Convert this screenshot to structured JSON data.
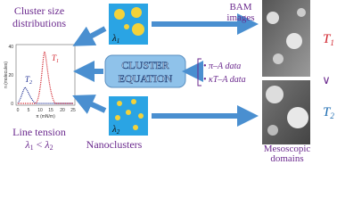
{
  "left": {
    "title": [
      "Cluster size",
      "distributions"
    ],
    "plot": {
      "y_label": "n (molecules)",
      "x_label": "π (mN/m)",
      "x_ticks": [
        "0",
        "5",
        "10",
        "15",
        "20",
        "25"
      ],
      "y_ticks": [
        "0",
        "20",
        "40"
      ],
      "curve_labels": [
        {
          "symbol": "T",
          "sub": "1"
        },
        {
          "symbol": "T",
          "sub": "2"
        }
      ]
    },
    "line_tension": {
      "text": "Line tension",
      "relation": {
        "a": "λ",
        "a_sub": "1",
        "op": " < ",
        "b": "λ",
        "b_sub": "2"
      }
    }
  },
  "center": {
    "top_square": {
      "symbol": "λ",
      "sub": "1"
    },
    "bottom_square": {
      "symbol": "λ",
      "sub": "2"
    },
    "equation": [
      "CLUSTER",
      "EQUATION"
    ],
    "caption": "Nanoclusters"
  },
  "inputs": [
    "π–A data",
    "κT–A data"
  ],
  "right": {
    "title": [
      "BAM",
      "images"
    ],
    "t1": {
      "symbol": "T",
      "sub": "1"
    },
    "relation": "∨",
    "t2": {
      "symbol": "T",
      "sub": "2"
    },
    "caption": [
      "Mesoscopic",
      "domains"
    ]
  }
}
